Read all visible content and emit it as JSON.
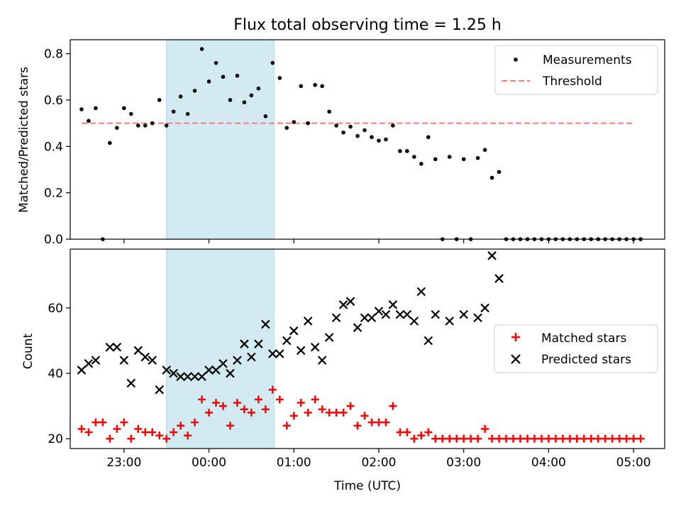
{
  "title": "Flux total observing time = 1.25 h",
  "colors": {
    "measurement": "#000000",
    "threshold": "#ff7b7b",
    "matched": "#ff0000",
    "predicted": "#000000",
    "shade": "#add8e6"
  },
  "chart_data": [
    {
      "type": "scatter",
      "panel": "top",
      "title": "Flux total observing time = 1.25 h",
      "xlabel": "",
      "ylabel": "Matched/Predicted stars",
      "x_ticks": [
        "23:00",
        "00:00",
        "01:00",
        "02:00",
        "03:00",
        "04:00",
        "05:00"
      ],
      "y_ticks": [
        "0.0",
        "0.2",
        "0.4",
        "0.6",
        "0.8"
      ],
      "ylim": [
        0.0,
        0.86
      ],
      "xlim": [
        "22:22",
        "05:22"
      ],
      "grid": false,
      "legend_position": "top-right",
      "legend": [
        "Measurements",
        "Threshold"
      ],
      "shaded_interval": [
        "23:30",
        "00:46"
      ],
      "threshold": {
        "name": "Threshold",
        "y": 0.5,
        "x": [
          "22:30",
          "05:00"
        ]
      },
      "series": [
        {
          "name": "Measurements",
          "points": [
            [
              "22:30",
              0.56
            ],
            [
              "22:35",
              0.51
            ],
            [
              "22:40",
              0.565
            ],
            [
              "22:45",
              0.0
            ],
            [
              "22:50",
              0.415
            ],
            [
              "22:55",
              0.48
            ],
            [
              "23:00",
              0.565
            ],
            [
              "23:05",
              0.54
            ],
            [
              "23:10",
              0.49
            ],
            [
              "23:15",
              0.49
            ],
            [
              "23:20",
              0.5
            ],
            [
              "23:25",
              0.6
            ],
            [
              "23:30",
              0.49
            ],
            [
              "23:35",
              0.55
            ],
            [
              "23:40",
              0.615
            ],
            [
              "23:45",
              0.54
            ],
            [
              "23:50",
              0.64
            ],
            [
              "23:55",
              0.82
            ],
            [
              "00:00",
              0.68
            ],
            [
              "00:05",
              0.76
            ],
            [
              "00:10",
              0.7
            ],
            [
              "00:15",
              0.6
            ],
            [
              "00:20",
              0.705
            ],
            [
              "00:25",
              0.59
            ],
            [
              "00:30",
              0.62
            ],
            [
              "00:35",
              0.65
            ],
            [
              "00:40",
              0.53
            ],
            [
              "00:45",
              0.76
            ],
            [
              "00:50",
              0.695
            ],
            [
              "00:55",
              0.48
            ],
            [
              "01:00",
              0.505
            ],
            [
              "01:05",
              0.66
            ],
            [
              "01:10",
              0.5
            ],
            [
              "01:15",
              0.665
            ],
            [
              "01:20",
              0.66
            ],
            [
              "01:25",
              0.55
            ],
            [
              "01:30",
              0.49
            ],
            [
              "01:35",
              0.46
            ],
            [
              "01:40",
              0.485
            ],
            [
              "01:45",
              0.445
            ],
            [
              "01:50",
              0.47
            ],
            [
              "01:55",
              0.44
            ],
            [
              "02:00",
              0.425
            ],
            [
              "02:05",
              0.43
            ],
            [
              "02:10",
              0.49
            ],
            [
              "02:15",
              0.38
            ],
            [
              "02:20",
              0.38
            ],
            [
              "02:25",
              0.355
            ],
            [
              "02:30",
              0.325
            ],
            [
              "02:35",
              0.44
            ],
            [
              "02:40",
              0.345
            ],
            [
              "02:45",
              0.0
            ],
            [
              "02:50",
              0.355
            ],
            [
              "02:55",
              0.0
            ],
            [
              "03:00",
              0.345
            ],
            [
              "03:05",
              0.0
            ],
            [
              "03:10",
              0.35
            ],
            [
              "03:15",
              0.385
            ],
            [
              "03:20",
              0.265
            ],
            [
              "03:25",
              0.29
            ],
            [
              "03:30",
              0.0
            ],
            [
              "03:35",
              0.0
            ],
            [
              "03:40",
              0.0
            ],
            [
              "03:45",
              0.0
            ],
            [
              "03:50",
              0.0
            ],
            [
              "03:55",
              0.0
            ],
            [
              "04:00",
              0.0
            ],
            [
              "04:05",
              0.0
            ],
            [
              "04:10",
              0.0
            ],
            [
              "04:15",
              0.0
            ],
            [
              "04:20",
              0.0
            ],
            [
              "04:25",
              0.0
            ],
            [
              "04:30",
              0.0
            ],
            [
              "04:35",
              0.0
            ],
            [
              "04:40",
              0.0
            ],
            [
              "04:45",
              0.0
            ],
            [
              "04:50",
              0.0
            ],
            [
              "04:55",
              0.0
            ],
            [
              "05:00",
              0.0
            ],
            [
              "05:05",
              0.0
            ]
          ]
        }
      ]
    },
    {
      "type": "scatter",
      "panel": "bottom",
      "title": "",
      "xlabel": "Time (UTC)",
      "ylabel": "Count",
      "x_ticks": [
        "23:00",
        "00:00",
        "01:00",
        "02:00",
        "03:00",
        "04:00",
        "05:00"
      ],
      "y_ticks": [
        "20",
        "40",
        "60"
      ],
      "ylim": [
        17,
        78
      ],
      "xlim": [
        "22:22",
        "05:22"
      ],
      "grid": false,
      "legend_position": "center-right",
      "legend": [
        "Matched stars",
        "Predicted stars"
      ],
      "shaded_interval": [
        "23:30",
        "00:46"
      ],
      "series": [
        {
          "name": "Matched stars",
          "marker": "plus",
          "points": [
            [
              "22:30",
              23
            ],
            [
              "22:35",
              22
            ],
            [
              "22:40",
              25
            ],
            [
              "22:45",
              25
            ],
            [
              "22:50",
              20
            ],
            [
              "22:55",
              23
            ],
            [
              "23:00",
              25
            ],
            [
              "23:05",
              20
            ],
            [
              "23:10",
              23
            ],
            [
              "23:15",
              22
            ],
            [
              "23:20",
              22
            ],
            [
              "23:25",
              21
            ],
            [
              "23:30",
              20
            ],
            [
              "23:35",
              22
            ],
            [
              "23:40",
              24
            ],
            [
              "23:45",
              21
            ],
            [
              "23:50",
              25
            ],
            [
              "23:55",
              32
            ],
            [
              "00:00",
              28
            ],
            [
              "00:05",
              31
            ],
            [
              "00:10",
              30
            ],
            [
              "00:15",
              24
            ],
            [
              "00:20",
              31
            ],
            [
              "00:25",
              29
            ],
            [
              "00:30",
              28
            ],
            [
              "00:35",
              32
            ],
            [
              "00:40",
              29
            ],
            [
              "00:45",
              35
            ],
            [
              "00:50",
              32
            ],
            [
              "00:55",
              24
            ],
            [
              "01:00",
              27
            ],
            [
              "01:05",
              31
            ],
            [
              "01:10",
              28
            ],
            [
              "01:15",
              32
            ],
            [
              "01:20",
              29
            ],
            [
              "01:25",
              28
            ],
            [
              "01:30",
              28
            ],
            [
              "01:35",
              28
            ],
            [
              "01:40",
              30
            ],
            [
              "01:45",
              24
            ],
            [
              "01:50",
              27
            ],
            [
              "01:55",
              25
            ],
            [
              "02:00",
              25
            ],
            [
              "02:05",
              25
            ],
            [
              "02:10",
              30
            ],
            [
              "02:15",
              22
            ],
            [
              "02:20",
              22
            ],
            [
              "02:25",
              20
            ],
            [
              "02:30",
              21
            ],
            [
              "02:35",
              22
            ],
            [
              "02:40",
              20
            ],
            [
              "02:45",
              20
            ],
            [
              "02:50",
              20
            ],
            [
              "02:55",
              20
            ],
            [
              "03:00",
              20
            ],
            [
              "03:05",
              20
            ],
            [
              "03:10",
              20
            ],
            [
              "03:15",
              23
            ],
            [
              "03:20",
              20
            ],
            [
              "03:25",
              20
            ],
            [
              "03:30",
              20
            ],
            [
              "03:35",
              20
            ],
            [
              "03:40",
              20
            ],
            [
              "03:45",
              20
            ],
            [
              "03:50",
              20
            ],
            [
              "03:55",
              20
            ],
            [
              "04:00",
              20
            ],
            [
              "04:05",
              20
            ],
            [
              "04:10",
              20
            ],
            [
              "04:15",
              20
            ],
            [
              "04:20",
              20
            ],
            [
              "04:25",
              20
            ],
            [
              "04:30",
              20
            ],
            [
              "04:35",
              20
            ],
            [
              "04:40",
              20
            ],
            [
              "04:45",
              20
            ],
            [
              "04:50",
              20
            ],
            [
              "04:55",
              20
            ],
            [
              "05:00",
              20
            ],
            [
              "05:05",
              20
            ]
          ]
        },
        {
          "name": "Predicted stars",
          "marker": "x",
          "points": [
            [
              "22:30",
              41
            ],
            [
              "22:35",
              43
            ],
            [
              "22:40",
              44
            ],
            [
              "22:50",
              48
            ],
            [
              "22:55",
              48
            ],
            [
              "23:00",
              44
            ],
            [
              "23:05",
              37
            ],
            [
              "23:10",
              47
            ],
            [
              "23:15",
              45
            ],
            [
              "23:20",
              44
            ],
            [
              "23:25",
              35
            ],
            [
              "23:30",
              41
            ],
            [
              "23:35",
              40
            ],
            [
              "23:40",
              39
            ],
            [
              "23:45",
              39
            ],
            [
              "23:50",
              39
            ],
            [
              "23:55",
              39
            ],
            [
              "00:00",
              41
            ],
            [
              "00:05",
              41
            ],
            [
              "00:10",
              43
            ],
            [
              "00:15",
              40
            ],
            [
              "00:20",
              44
            ],
            [
              "00:25",
              49
            ],
            [
              "00:30",
              45
            ],
            [
              "00:35",
              49
            ],
            [
              "00:40",
              55
            ],
            [
              "00:45",
              46
            ],
            [
              "00:50",
              46
            ],
            [
              "00:55",
              50
            ],
            [
              "01:00",
              53
            ],
            [
              "01:05",
              47
            ],
            [
              "01:10",
              56
            ],
            [
              "01:15",
              48
            ],
            [
              "01:20",
              44
            ],
            [
              "01:25",
              51
            ],
            [
              "01:30",
              57
            ],
            [
              "01:35",
              61
            ],
            [
              "01:40",
              62
            ],
            [
              "01:45",
              54
            ],
            [
              "01:50",
              57
            ],
            [
              "01:55",
              57
            ],
            [
              "02:00",
              59
            ],
            [
              "02:05",
              58
            ],
            [
              "02:10",
              61
            ],
            [
              "02:15",
              58
            ],
            [
              "02:20",
              58
            ],
            [
              "02:25",
              56
            ],
            [
              "02:30",
              65
            ],
            [
              "02:35",
              50
            ],
            [
              "02:40",
              58
            ],
            [
              "02:50",
              56
            ],
            [
              "03:00",
              58
            ],
            [
              "03:10",
              57
            ],
            [
              "03:15",
              60
            ],
            [
              "03:20",
              76
            ],
            [
              "03:25",
              69
            ]
          ]
        }
      ]
    }
  ]
}
